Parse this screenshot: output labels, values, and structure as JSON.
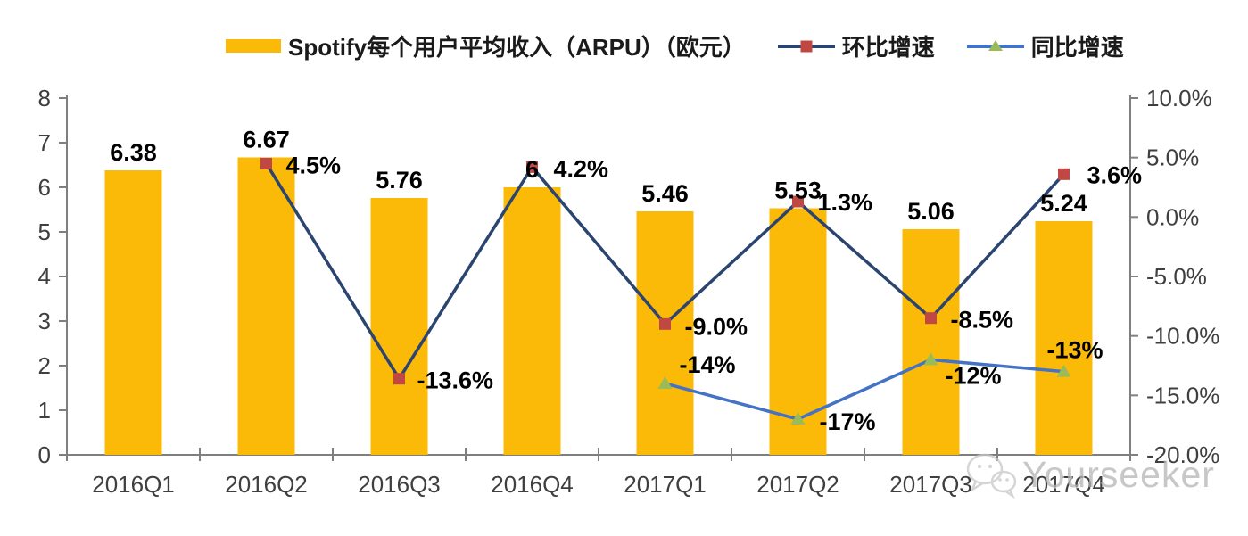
{
  "chart": {
    "watermark_text": "Yourseeker"
  },
  "chart_data": {
    "type": "bar+line combo",
    "title": "Spotify每个用户平均收入（ARPU）（欧元）",
    "grid": false,
    "legend_position": "top",
    "categories": [
      "2016Q1",
      "2016Q2",
      "2016Q3",
      "2016Q4",
      "2017Q1",
      "2017Q2",
      "2017Q3",
      "2017Q4"
    ],
    "left_axis": {
      "min": 0,
      "max": 8,
      "tick_values": [
        0,
        1,
        2,
        3,
        4,
        5,
        6,
        7,
        8
      ],
      "tick_labels": [
        "0",
        "1",
        "2",
        "3",
        "4",
        "5",
        "6",
        "7",
        "8"
      ]
    },
    "right_axis": {
      "min": -20,
      "max": 10,
      "tick_values": [
        10,
        5,
        0,
        -5,
        -10,
        -15,
        -20
      ],
      "tick_labels": [
        "10.0%",
        "5.0%",
        "0.0%",
        "-5.0%",
        "-10.0%",
        "-15.0%",
        "-20.0%"
      ]
    },
    "series": [
      {
        "name": "Spotify每个用户平均收入（ARPU）（欧元）",
        "type": "bar",
        "axis": "left",
        "color": "#FBB908",
        "values": [
          6.38,
          6.67,
          5.76,
          6,
          5.46,
          5.53,
          5.06,
          5.24
        ],
        "labels": [
          "6.38",
          "6.67",
          "5.76",
          "6",
          "5.46",
          "5.53",
          "5.06",
          "5.24"
        ]
      },
      {
        "name": "环比增速",
        "type": "line",
        "axis": "right",
        "color": "#2B4570",
        "marker": "square",
        "marker_color": "#C14743",
        "values": [
          null,
          4.5,
          -13.6,
          4.2,
          -9.0,
          1.3,
          -8.5,
          3.6
        ],
        "labels": [
          null,
          "4.5%",
          "-13.6%",
          "4.2%",
          "-9.0%",
          "1.3%",
          "-8.5%",
          "3.6%"
        ]
      },
      {
        "name": "同比增速",
        "type": "line",
        "axis": "right",
        "color": "#4472C4",
        "marker": "triangle",
        "marker_color": "#9BBB59",
        "values": [
          null,
          null,
          null,
          null,
          -14,
          -17,
          -12,
          -13
        ],
        "labels": [
          null,
          null,
          null,
          null,
          "-14%",
          "-17%",
          "-12%",
          "-13%"
        ]
      }
    ],
    "colors": {
      "axis": "#7F7F7F",
      "tick_text": "#3F3F3F",
      "label_text": "#000000"
    }
  }
}
